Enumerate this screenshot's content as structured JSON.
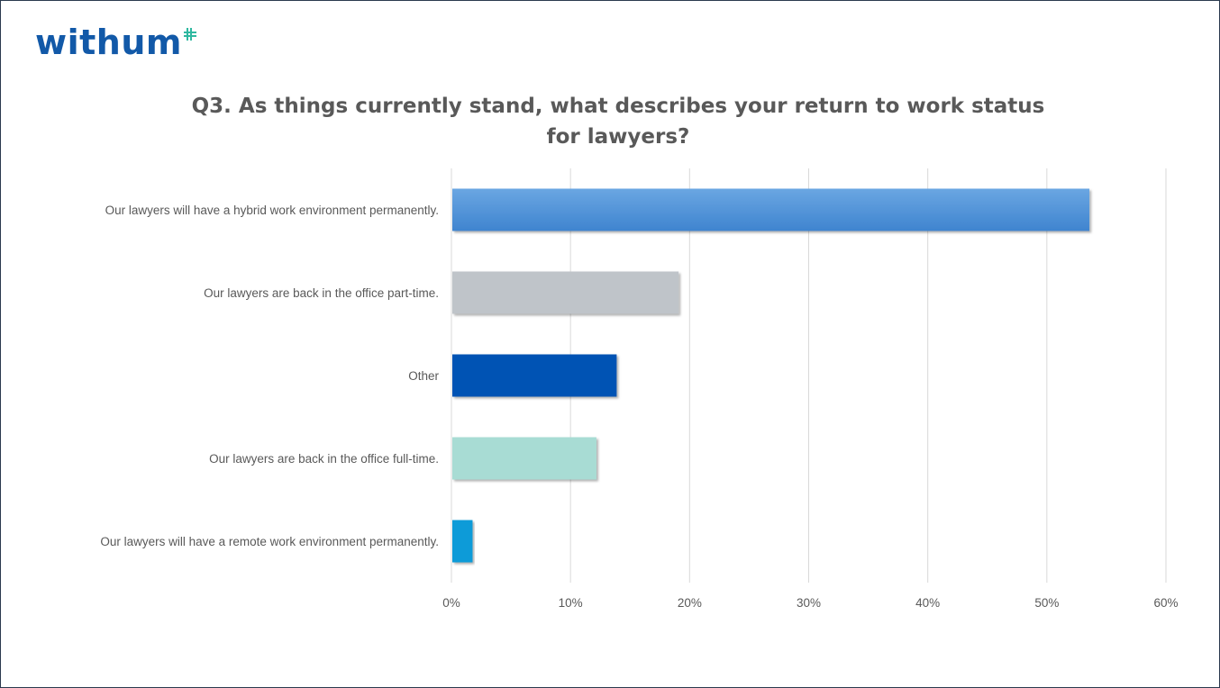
{
  "logo": {
    "text": "withum"
  },
  "chart_data": {
    "type": "bar",
    "orientation": "horizontal",
    "title": "Q3. As things currently stand, what describes your return to work status for lawyers?",
    "xlabel": "",
    "ylabel": "",
    "categories": [
      "Our lawyers will have a hybrid work environment permanently.",
      "Our lawyers are back in the office part-time.",
      "Other",
      "Our lawyers are back in the office full-time.",
      "Our lawyers will have a remote work environment permanently."
    ],
    "values": [
      0.535,
      0.19,
      0.138,
      0.121,
      0.017
    ],
    "colors": [
      "#4a8fd6",
      "#bfc4c9",
      "#0052b4",
      "#a8dcd4",
      "#0a9bd8"
    ],
    "xlim": [
      0,
      0.6
    ],
    "ticks": [
      "0%",
      "10%",
      "20%",
      "30%",
      "40%",
      "50%",
      "60%"
    ],
    "grid": true,
    "legend": "none"
  }
}
